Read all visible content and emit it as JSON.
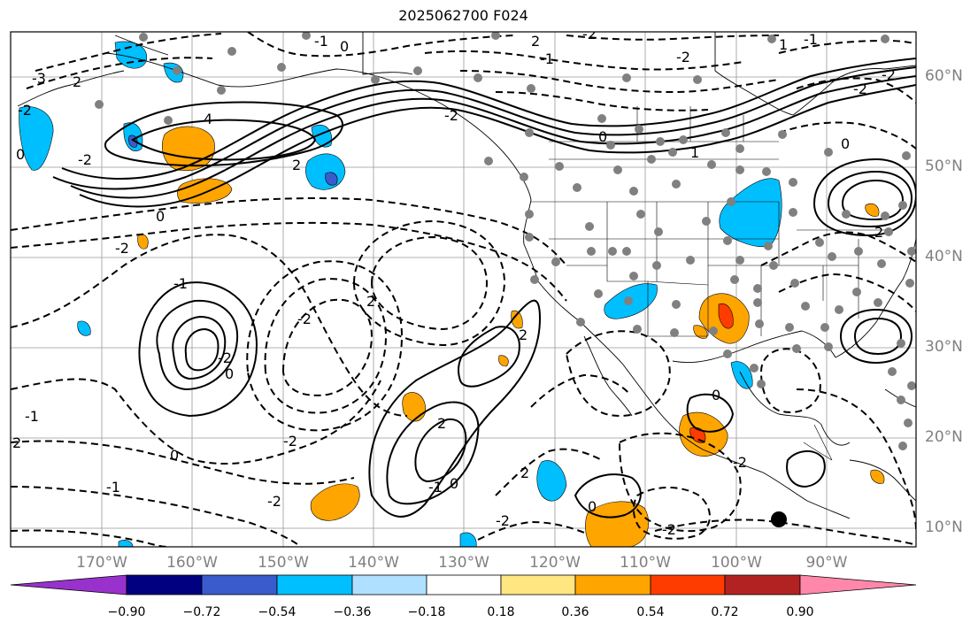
{
  "title": "2025062700 F024",
  "latitude_labels": [
    "60°N",
    "50°N",
    "40°N",
    "30°N",
    "20°N",
    "10°N"
  ],
  "longitude_labels": [
    "170°W",
    "160°W",
    "150°W",
    "140°W",
    "130°W",
    "120°W",
    "110°W",
    "100°W",
    "90°W"
  ],
  "colorbar": {
    "colors": [
      "#9932cc",
      "#000080",
      "#3a5bcc",
      "#00bfff",
      "#b0e0ff",
      "#ffffff",
      "#ffe680",
      "#ffa500",
      "#ff3c00",
      "#b22222",
      "#ff88aa"
    ],
    "tick_labels": [
      "−0.90",
      "−0.72",
      "−0.54",
      "−0.36",
      "−0.18",
      "0.18",
      "0.36",
      "0.54",
      "0.72",
      "0.90"
    ]
  },
  "contour_labels": [
    "-3",
    "2",
    "-2",
    "-1",
    "0",
    "2",
    "-2",
    "4",
    "-2",
    "0",
    "2",
    "-2",
    "-2",
    "0",
    "-1",
    "-2",
    "0",
    "1",
    "-1",
    "1",
    "-2",
    "0",
    "-2",
    "2",
    "-1",
    "-2",
    "-2",
    "0",
    "-1",
    "2",
    "-1",
    "-2",
    "0",
    "-2",
    "2",
    "-1",
    "0",
    "2",
    "2",
    "-2",
    "0",
    "2",
    "-2",
    "0",
    "-2"
  ]
}
